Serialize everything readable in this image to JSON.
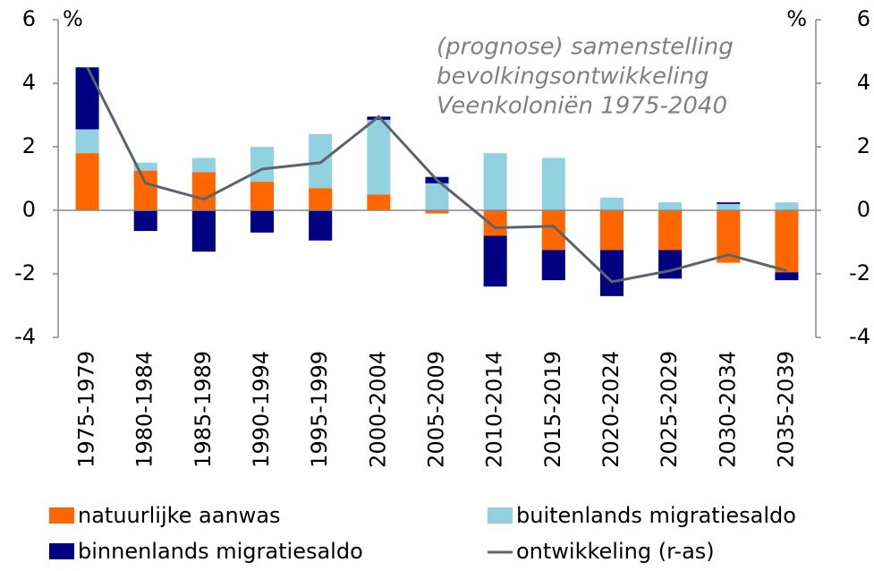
{
  "chart_data": {
    "type": "bar",
    "annotation": [
      "(prognose) samenstelling",
      "bevolkingsontwikkeling",
      "Veenkoloniën 1975-2040"
    ],
    "ylabel": "%",
    "y2label": "%",
    "categories": [
      "1975-1979",
      "1980-1984",
      "1985-1989",
      "1990-1994",
      "1995-1999",
      "2000-2004",
      "2005-2009",
      "2010-2014",
      "2015-2019",
      "2020-2024",
      "2025-2029",
      "2030-2034",
      "2035-2039"
    ],
    "series": [
      {
        "name": "natuurlijke aanwas",
        "color": "#ff6600",
        "values": [
          1.8,
          1.25,
          1.2,
          0.9,
          0.7,
          0.5,
          -0.1,
          -0.8,
          -1.25,
          -1.25,
          -1.25,
          -1.65,
          -1.95
        ]
      },
      {
        "name": "buitenlands migratiesaldo",
        "color": "#92d1df",
        "values": [
          0.75,
          0.25,
          0.45,
          1.1,
          1.7,
          2.35,
          0.85,
          1.8,
          1.65,
          0.4,
          0.25,
          0.2,
          0.25
        ]
      },
      {
        "name": "binnenlands migratiesaldo",
        "color": "#000080",
        "values": [
          1.95,
          -0.65,
          -1.3,
          -0.7,
          -0.95,
          0.1,
          0.2,
          -1.6,
          -0.95,
          -1.45,
          -0.9,
          0.05,
          -0.25
        ]
      },
      {
        "name": "ontwikkeling (r-as)",
        "color": "#5a6470",
        "type": "line",
        "axis": "y2",
        "values": [
          4.5,
          0.85,
          0.35,
          1.3,
          1.5,
          2.95,
          0.95,
          -0.55,
          -0.5,
          -2.25,
          -1.9,
          -1.4,
          -1.9
        ]
      }
    ],
    "ylim": [
      -4,
      6
    ],
    "yticks": [
      -4,
      -2,
      0,
      2,
      4,
      6
    ],
    "y2lim": [
      -4,
      6
    ],
    "y2ticks": [
      -4,
      -2,
      0,
      2,
      4,
      6
    ],
    "grid": false
  }
}
